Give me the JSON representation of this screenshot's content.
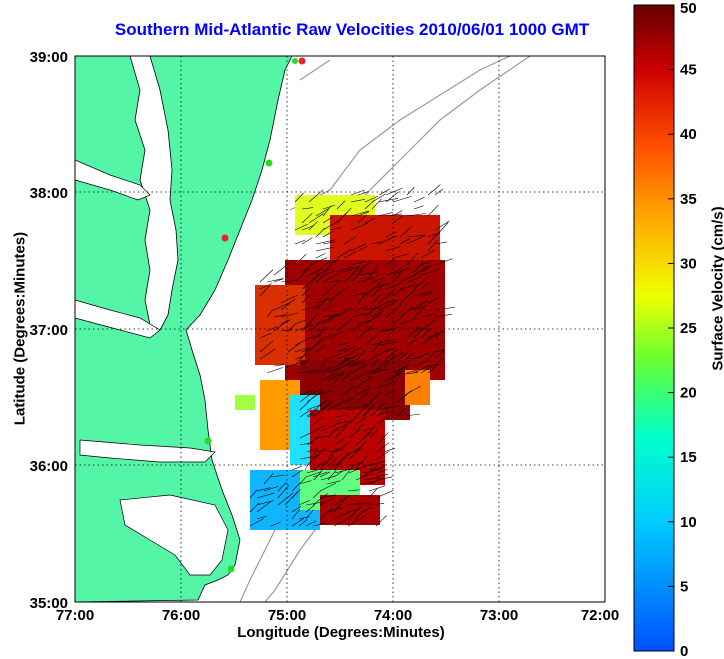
{
  "title": "Southern Mid-Atlantic Raw Velocities 2010/06/01 1000 GMT",
  "xlabel": "Longitude (Degrees:Minutes)",
  "ylabel": "Latitude (Degrees:Minutes)",
  "colorbar_label": "Surface Velocity (cm/s)",
  "colorbar_ticks": [
    "0",
    "5",
    "10",
    "15",
    "20",
    "25",
    "30",
    "35",
    "40",
    "45",
    "50"
  ],
  "x_ticks": [
    "77:00",
    "76:00",
    "75:00",
    "74:00",
    "73:00",
    "72:00"
  ],
  "y_ticks": [
    "39:00",
    "38:00",
    "37:00",
    "36:00",
    "35:00"
  ],
  "colors": {
    "land": "#55f5a8",
    "title": "#0000ff",
    "station_green": "#22dd22",
    "station_red": "#ee2222",
    "bathymetry": "#999999",
    "vector": "#000000"
  },
  "map": {
    "lon_range": [
      -77,
      -72
    ],
    "lat_range": [
      35,
      39
    ],
    "grid": true
  },
  "colorbar": {
    "range": [
      0,
      50
    ],
    "colormap": "jet"
  }
}
